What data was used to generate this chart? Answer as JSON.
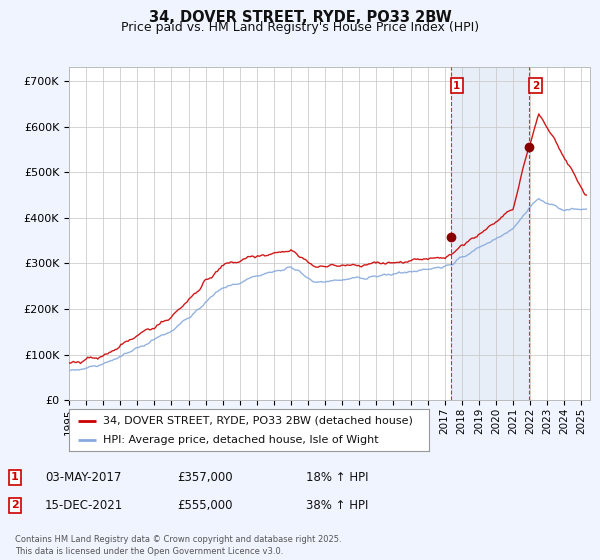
{
  "title": "34, DOVER STREET, RYDE, PO33 2BW",
  "subtitle": "Price paid vs. HM Land Registry's House Price Index (HPI)",
  "ylim": [
    0,
    730000
  ],
  "yticks": [
    0,
    100000,
    200000,
    300000,
    400000,
    500000,
    600000,
    700000
  ],
  "ytick_labels": [
    "£0",
    "£100K",
    "£200K",
    "£300K",
    "£400K",
    "£500K",
    "£600K",
    "£700K"
  ],
  "xlim_start": 1995.0,
  "xlim_end": 2025.5,
  "legend_entries": [
    "34, DOVER STREET, RYDE, PO33 2BW (detached house)",
    "HPI: Average price, detached house, Isle of Wight"
  ],
  "legend_colors": [
    "#cc0000",
    "#88aadd"
  ],
  "shade_color": "#dde8f5",
  "sale1_date": 2017.35,
  "sale1_price": 357000,
  "sale1_label": "1",
  "sale1_text": "03-MAY-2017",
  "sale1_pct": "18% ↑ HPI",
  "sale2_date": 2021.96,
  "sale2_price": 555000,
  "sale2_label": "2",
  "sale2_text": "15-DEC-2021",
  "sale2_pct": "38% ↑ HPI",
  "footer": "Contains HM Land Registry data © Crown copyright and database right 2025.\nThis data is licensed under the Open Government Licence v3.0.",
  "bg_color": "#f0f4ff",
  "plot_bg": "#ffffff",
  "grid_color": "#cccccc",
  "title_fontsize": 10.5,
  "subtitle_fontsize": 9,
  "tick_fontsize": 8,
  "legend_fontsize": 8,
  "annot_fontsize": 8.5
}
